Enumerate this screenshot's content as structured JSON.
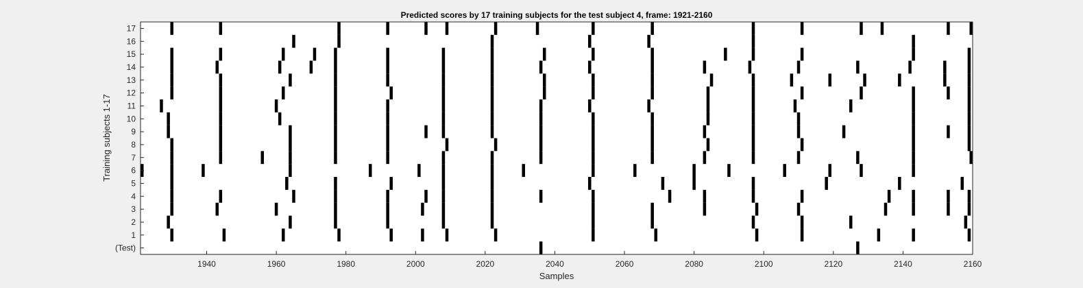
{
  "chart_data": {
    "type": "heatmap",
    "title": "Predicted scores by 17 training subjects for the test subject 4, frame: 1921-2160",
    "xlabel": "Samples",
    "ylabel": "Training subjects 1-17",
    "xlim": [
      1921,
      2160
    ],
    "x_ticks": [
      1940,
      1960,
      1980,
      2000,
      2020,
      2040,
      2060,
      2080,
      2100,
      2120,
      2140,
      2160
    ],
    "y_tick_labels": [
      "(Test)",
      "1",
      "2",
      "3",
      "4",
      "5",
      "6",
      "7",
      "8",
      "9",
      "10",
      "11",
      "12",
      "13",
      "14",
      "15",
      "16",
      "17"
    ],
    "colors": {
      "mark": "#000000",
      "background": "#ffffff",
      "figure": "#f0f0f0"
    },
    "rows": [
      {
        "label": "(Test)",
        "x": [
          2036,
          2127
        ]
      },
      {
        "label": "1",
        "x": [
          1930,
          1945,
          1962,
          1978,
          1993,
          2002,
          2009,
          2023,
          2051,
          2069,
          2098,
          2111,
          2133,
          2143,
          2159
        ]
      },
      {
        "label": "2",
        "x": [
          1929,
          1964,
          1977,
          1992,
          2008,
          2022,
          2051,
          2068,
          2097,
          2111,
          2125,
          2158
        ]
      },
      {
        "label": "3",
        "x": [
          1930,
          1943,
          1960,
          1977,
          1992,
          2002,
          2008,
          2022,
          2051,
          2068,
          2083,
          2098,
          2110,
          2135,
          2143,
          2153,
          2159
        ]
      },
      {
        "label": "4",
        "x": [
          1930,
          1944,
          1965,
          1977,
          1992,
          2003,
          2008,
          2022,
          2036,
          2051,
          2073,
          2083,
          2097,
          2111,
          2136,
          2143,
          2153,
          2159
        ]
      },
      {
        "label": "5",
        "x": [
          1930,
          1963,
          1977,
          1993,
          2008,
          2022,
          2050,
          2071,
          2080,
          2097,
          2118,
          2139,
          2157
        ]
      },
      {
        "label": "6",
        "x": [
          1921,
          1930,
          1939,
          1964,
          1987,
          2001,
          2008,
          2022,
          2031,
          2051,
          2063,
          2080,
          2090,
          2106,
          2119,
          2128,
          2143
        ]
      },
      {
        "label": "7",
        "x": [
          1930,
          1944,
          1956,
          1964,
          1977,
          1992,
          2008,
          2022,
          2036,
          2051,
          2068,
          2083,
          2097,
          2110,
          2127,
          2143,
          2160
        ]
      },
      {
        "label": "8",
        "x": [
          1930,
          1944,
          1964,
          1977,
          1992,
          2009,
          2023,
          2036,
          2051,
          2068,
          2084,
          2097,
          2111,
          2143,
          2159
        ]
      },
      {
        "label": "9",
        "x": [
          1929,
          1944,
          1964,
          1977,
          1992,
          2003,
          2008,
          2022,
          2036,
          2051,
          2068,
          2083,
          2097,
          2110,
          2123,
          2143,
          2153,
          2159
        ]
      },
      {
        "label": "10",
        "x": [
          1929,
          1944,
          1961,
          1977,
          1992,
          2008,
          2022,
          2036,
          2051,
          2068,
          2084,
          2097,
          2110,
          2143,
          2159
        ]
      },
      {
        "label": "11",
        "x": [
          1927,
          1944,
          1960,
          1977,
          1992,
          2008,
          2022,
          2036,
          2050,
          2067,
          2084,
          2097,
          2109,
          2125,
          2143,
          2159
        ]
      },
      {
        "label": "12",
        "x": [
          1930,
          1944,
          1962,
          1977,
          1993,
          2008,
          2022,
          2037,
          2051,
          2068,
          2084,
          2097,
          2111,
          2128,
          2143,
          2153,
          2159
        ]
      },
      {
        "label": "13",
        "x": [
          1930,
          1944,
          1964,
          1977,
          1992,
          2008,
          2022,
          2037,
          2051,
          2068,
          2085,
          2097,
          2108,
          2119,
          2129,
          2139,
          2152,
          2159
        ]
      },
      {
        "label": "14",
        "x": [
          1930,
          1943,
          1961,
          1970,
          1977,
          1992,
          2008,
          2022,
          2036,
          2050,
          2068,
          2083,
          2096,
          2110,
          2127,
          2142,
          2152,
          2159
        ]
      },
      {
        "label": "15",
        "x": [
          1930,
          1944,
          1962,
          1971,
          1977,
          1992,
          2008,
          2022,
          2037,
          2051,
          2068,
          2089,
          2097,
          2111,
          2143,
          2159
        ]
      },
      {
        "label": "16",
        "x": [
          1965,
          1978,
          2022,
          2050,
          2067,
          2097,
          2143
        ]
      },
      {
        "label": "17",
        "x": [
          1930,
          1944,
          1978,
          1992,
          2003,
          2009,
          2023,
          2035,
          2051,
          2068,
          2097,
          2111,
          2128,
          2134,
          2153,
          2160
        ]
      }
    ]
  }
}
